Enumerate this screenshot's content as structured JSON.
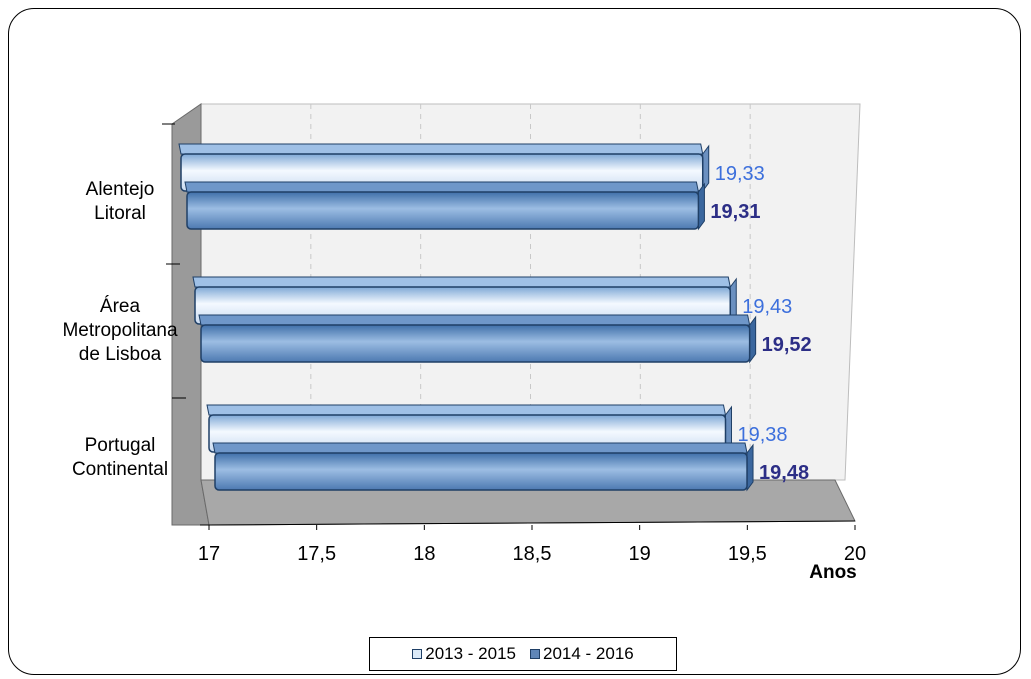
{
  "chart_data": {
    "type": "bar",
    "orientation": "horizontal",
    "style": "3d-clustered",
    "categories": [
      "Alentejo Litoral",
      "Área Metropolitana de Lisboa",
      "Portugal Continental"
    ],
    "category_lines": [
      [
        "Alentejo",
        "Litoral"
      ],
      [
        "Área",
        "Metropolitana",
        "de Lisboa"
      ],
      [
        "Portugal",
        "Continental"
      ]
    ],
    "series": [
      {
        "name": "2013 - 2015",
        "values": [
          19.33,
          19.43,
          19.38
        ],
        "labels": [
          "19,33",
          "19,43",
          "19,38"
        ],
        "color": "#dbeaf8",
        "label_color": "#3c6fdc"
      },
      {
        "name": "2014 - 2016",
        "values": [
          19.31,
          19.52,
          19.48
        ],
        "labels": [
          "19,31",
          "19,52",
          "19,48"
        ],
        "color": "#5f86b8",
        "label_color": "#2c2e86"
      }
    ],
    "xlim": [
      17,
      20
    ],
    "xticks": [
      17,
      17.5,
      18,
      18.5,
      19,
      19.5,
      20
    ],
    "xtick_labels": [
      "17",
      "17,5",
      "18",
      "18,5",
      "19",
      "19,5",
      "20"
    ],
    "xlabel": "Anos",
    "grid": true,
    "legend_position": "bottom"
  }
}
